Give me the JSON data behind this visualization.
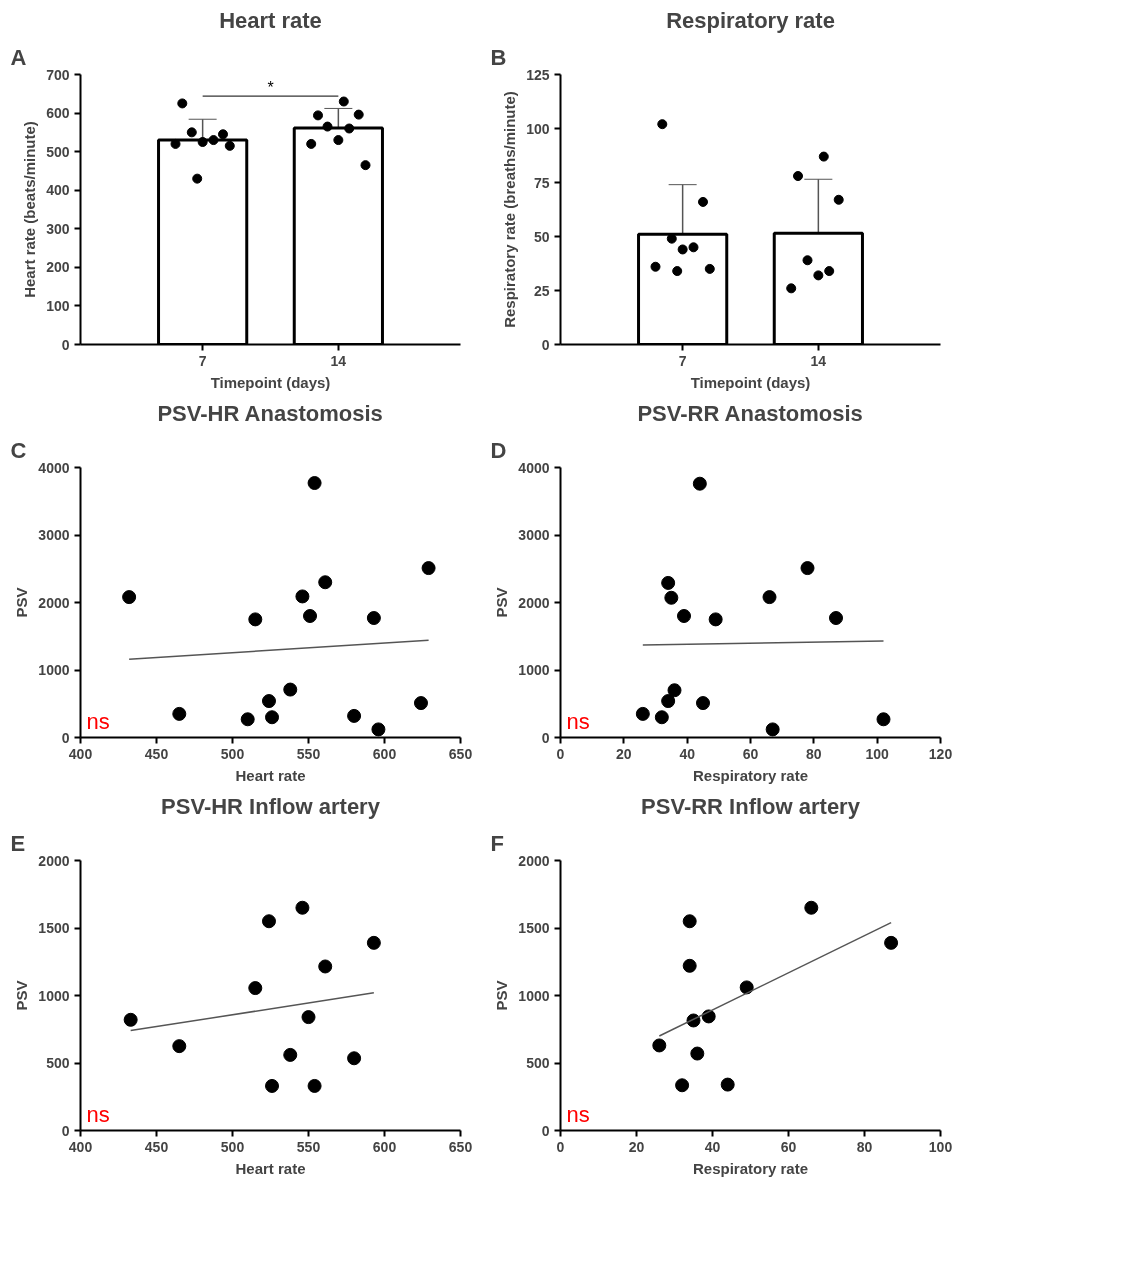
{
  "chart_data": [
    {
      "type": "bar",
      "title": "Heart rate",
      "xlabel": "Timepoint (days)",
      "ylabel": "Heart rate (beats/minute)",
      "categories": [
        "7",
        "14"
      ],
      "ylim": [
        0,
        700
      ],
      "yticks": [
        0,
        100,
        200,
        300,
        400,
        500,
        600,
        700
      ],
      "annotations": [
        "A",
        "*"
      ],
      "grid": false,
      "marker": "circle",
      "series": [
        {
          "type": "bar",
          "color": "#ffffff",
          "values": [
            530,
            561
          ],
          "errors": [
            54,
            51
          ]
        },
        {
          "type": "scatter",
          "color": "#000000",
          "x": [
            "7",
            "7",
            "7",
            "7",
            "7",
            "7",
            "7",
            "7",
            "14",
            "14",
            "14",
            "14",
            "14",
            "14",
            "14",
            "14"
          ],
          "values": [
            625,
            545,
            550,
            530,
            525,
            520,
            515,
            430,
            630,
            594,
            596,
            565,
            560,
            530,
            520,
            465
          ]
        }
      ]
    },
    {
      "type": "bar",
      "title": "Respiratory rate",
      "xlabel": "Timepoint (days)",
      "ylabel": "Respiratory rate (breaths/minute)",
      "categories": [
        "7",
        "14"
      ],
      "ylim": [
        0,
        125
      ],
      "yticks": [
        0,
        25,
        50,
        75,
        100,
        125
      ],
      "annotations": [
        "B"
      ],
      "grid": false,
      "marker": "circle",
      "series": [
        {
          "type": "bar",
          "color": "#ffffff",
          "values": [
            51,
            51.5
          ],
          "errors": [
            23,
            25
          ]
        },
        {
          "type": "scatter",
          "color": "#000000",
          "x": [
            "7",
            "7",
            "7",
            "7",
            "7",
            "7",
            "7",
            "7",
            "14",
            "14",
            "14",
            "14",
            "14",
            "14",
            "14"
          ],
          "values": [
            102,
            66,
            49,
            45,
            44,
            36,
            35,
            34,
            87,
            78,
            67,
            39,
            34,
            32,
            26
          ]
        }
      ]
    },
    {
      "type": "scatter",
      "title": "PSV-HR Anastomosis",
      "xlabel": "Heart rate",
      "ylabel": "PSV",
      "xlim": [
        400,
        650
      ],
      "xticks": [
        400,
        450,
        500,
        550,
        600,
        650
      ],
      "ylim": [
        0,
        4000
      ],
      "yticks": [
        0,
        1000,
        2000,
        3000,
        4000
      ],
      "annotations": [
        "C",
        "ns"
      ],
      "grid": false,
      "marker": "circle",
      "series": [
        {
          "type": "scatter",
          "color": "#000000",
          "x": [
            432,
            465,
            510,
            515,
            524,
            526,
            538,
            546,
            551,
            554,
            561,
            580,
            593,
            596,
            624,
            629
          ],
          "values": [
            2080,
            350,
            270,
            1750,
            540,
            300,
            710,
            2090,
            1800,
            3770,
            2300,
            320,
            1770,
            120,
            510,
            2510
          ]
        },
        {
          "type": "line",
          "color": "#555555",
          "marker": "none",
          "x": [
            432,
            629
          ],
          "values": [
            1160,
            1440
          ]
        }
      ]
    },
    {
      "type": "scatter",
      "title": "PSV-RR Anastomosis",
      "xlabel": "Respiratory rate",
      "ylabel": "PSV",
      "xlim": [
        0,
        120
      ],
      "xticks": [
        0,
        20,
        40,
        60,
        80,
        100,
        120
      ],
      "ylim": [
        0,
        4000
      ],
      "yticks": [
        0,
        1000,
        2000,
        3000,
        4000
      ],
      "annotations": [
        "D",
        "ns"
      ],
      "grid": false,
      "marker": "circle",
      "series": [
        {
          "type": "scatter",
          "color": "#000000",
          "x": [
            26,
            32,
            34,
            35,
            34,
            36,
            39,
            44,
            45,
            49,
            66,
            67,
            78,
            87,
            102
          ],
          "values": [
            350,
            300,
            2290,
            2070,
            540,
            700,
            1800,
            3760,
            510,
            1750,
            2080,
            120,
            2510,
            1770,
            270
          ]
        },
        {
          "type": "line",
          "color": "#555555",
          "marker": "none",
          "x": [
            26,
            102
          ],
          "values": [
            1370,
            1430
          ]
        }
      ]
    },
    {
      "type": "scatter",
      "title": "PSV-HR Inflow artery",
      "xlabel": "Heart rate",
      "ylabel": "PSV",
      "xlim": [
        400,
        650
      ],
      "xticks": [
        400,
        450,
        500,
        550,
        600,
        650
      ],
      "ylim": [
        0,
        2000
      ],
      "yticks": [
        0,
        500,
        1000,
        1500,
        2000
      ],
      "annotations": [
        "E",
        "ns"
      ],
      "grid": false,
      "marker": "circle",
      "series": [
        {
          "type": "scatter",
          "color": "#000000",
          "x": [
            433,
            465,
            515,
            524,
            526,
            538,
            546,
            550,
            554,
            561,
            580,
            593
          ],
          "values": [
            820,
            625,
            1055,
            1550,
            330,
            560,
            1650,
            840,
            330,
            1215,
            535,
            1390
          ]
        },
        {
          "type": "line",
          "color": "#555555",
          "marker": "none",
          "x": [
            433,
            593
          ],
          "values": [
            740,
            1020
          ]
        }
      ]
    },
    {
      "type": "scatter",
      "title": "PSV-RR Inflow artery",
      "xlabel": "Respiratory rate",
      "ylabel": "PSV",
      "xlim": [
        0,
        100
      ],
      "xticks": [
        0,
        20,
        40,
        60,
        80,
        100
      ],
      "ylim": [
        0,
        2000
      ],
      "yticks": [
        0,
        500,
        1000,
        1500,
        2000
      ],
      "annotations": [
        "F",
        "ns"
      ],
      "grid": false,
      "marker": "circle",
      "series": [
        {
          "type": "scatter",
          "color": "#000000",
          "x": [
            26,
            32,
            34,
            34,
            35,
            36,
            39,
            44,
            49,
            66,
            87
          ],
          "values": [
            630,
            335,
            1550,
            1220,
            815,
            570,
            845,
            340,
            1060,
            1650,
            1390
          ]
        },
        {
          "type": "line",
          "color": "#555555",
          "marker": "none",
          "x": [
            26,
            87
          ],
          "values": [
            700,
            1540
          ]
        }
      ]
    }
  ]
}
